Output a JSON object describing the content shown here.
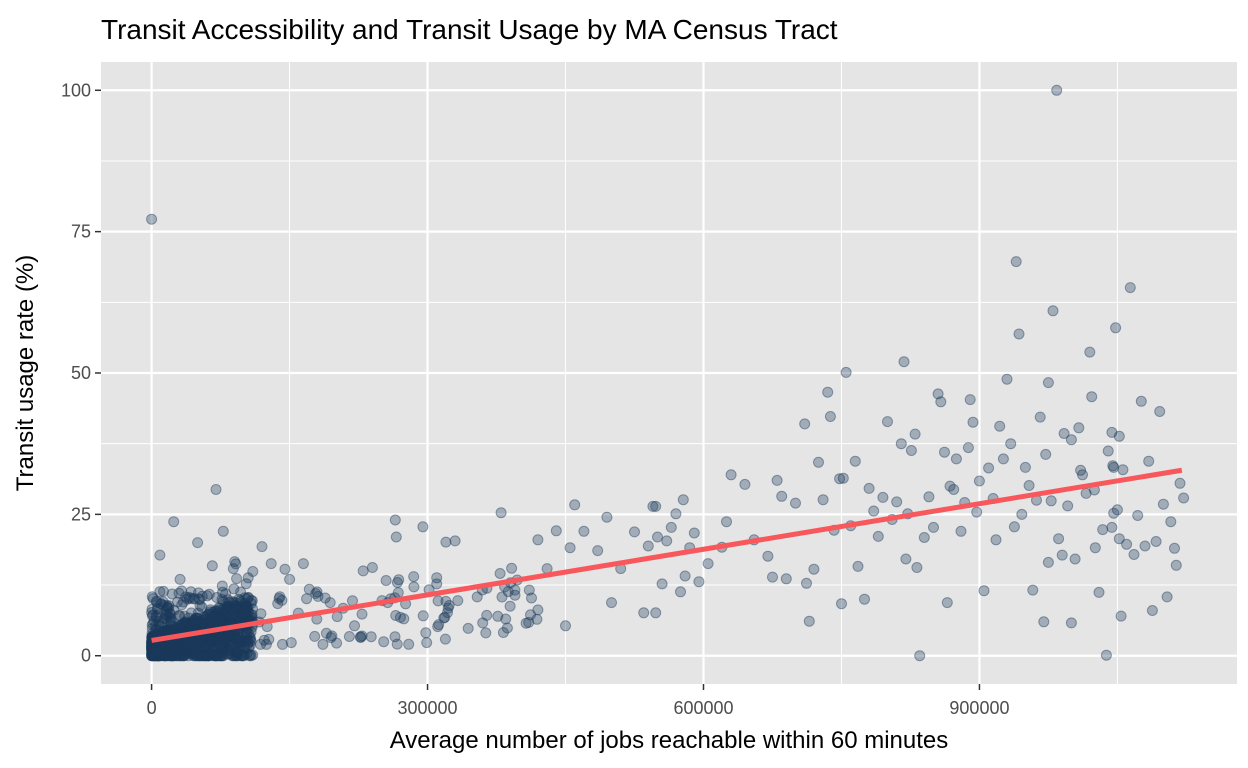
{
  "chart_data": {
    "type": "scatter",
    "title": "Transit Accessibility and Transit Usage by MA Census Tract",
    "xlabel": "Average number of jobs reachable within 60 minutes",
    "ylabel": "Transit usage rate (%)",
    "xlim": [
      -55000,
      1180000
    ],
    "ylim": [
      -5,
      105
    ],
    "x_ticks": [
      0,
      300000,
      600000,
      900000
    ],
    "x_tick_labels": [
      "0",
      "300000",
      "600000",
      "900000"
    ],
    "y_ticks": [
      0,
      25,
      50,
      75,
      100
    ],
    "y_tick_labels": [
      "0",
      "25",
      "50",
      "75",
      "100"
    ],
    "grid": true,
    "legend": "none",
    "colors": {
      "panel": "#e5e5e5",
      "grid": "#ffffff",
      "point": "#1b3a5c",
      "fit_line": "#f8575c"
    },
    "fit_line": {
      "x": [
        0,
        1120000
      ],
      "y": [
        2.7,
        32.8
      ]
    },
    "points": [
      [
        0,
        77.2
      ],
      [
        9000,
        17.8
      ],
      [
        50000,
        20
      ],
      [
        70000,
        29.4
      ],
      [
        78000,
        22
      ],
      [
        24000,
        23.7
      ],
      [
        66000,
        15.9
      ],
      [
        120000,
        19.3
      ],
      [
        130000,
        16.3
      ],
      [
        145000,
        15.3
      ],
      [
        165000,
        16.3
      ],
      [
        110000,
        14.9
      ],
      [
        150000,
        13.5
      ],
      [
        195000,
        3.2
      ],
      [
        215000,
        3.4
      ],
      [
        230000,
        15
      ],
      [
        240000,
        15.6
      ],
      [
        255000,
        13.3
      ],
      [
        265000,
        24
      ],
      [
        266000,
        21
      ],
      [
        285000,
        14
      ],
      [
        295000,
        22.8
      ],
      [
        310000,
        13.8
      ],
      [
        310000,
        12.7
      ],
      [
        320000,
        9.6
      ],
      [
        320000,
        20.1
      ],
      [
        330000,
        20.3
      ],
      [
        360000,
        5.8
      ],
      [
        380000,
        25.3
      ],
      [
        385000,
        6.5
      ],
      [
        395000,
        11.6
      ],
      [
        410000,
        5.9
      ],
      [
        420000,
        8.1
      ],
      [
        420000,
        20.5
      ],
      [
        430000,
        15.4
      ],
      [
        440000,
        22.1
      ],
      [
        450000,
        5.3
      ],
      [
        455000,
        19.1
      ],
      [
        460000,
        26.7
      ],
      [
        470000,
        22
      ],
      [
        485000,
        18.6
      ],
      [
        495000,
        24.5
      ],
      [
        500000,
        9.4
      ],
      [
        510000,
        15.4
      ],
      [
        525000,
        21.9
      ],
      [
        535000,
        7.6
      ],
      [
        540000,
        19.4
      ],
      [
        545000,
        26.4
      ],
      [
        548000,
        26.4
      ],
      [
        548000,
        7.6
      ],
      [
        550000,
        21
      ],
      [
        555000,
        12.7
      ],
      [
        560000,
        20.3
      ],
      [
        565000,
        22.7
      ],
      [
        570000,
        25.1
      ],
      [
        575000,
        11.3
      ],
      [
        578000,
        27.6
      ],
      [
        580000,
        14.1
      ],
      [
        585000,
        19.1
      ],
      [
        590000,
        21.7
      ],
      [
        595000,
        13.1
      ],
      [
        605000,
        16.3
      ],
      [
        620000,
        19.2
      ],
      [
        625000,
        23.7
      ],
      [
        630000,
        32
      ],
      [
        645000,
        30.3
      ],
      [
        655000,
        20.5
      ],
      [
        670000,
        17.6
      ],
      [
        675000,
        13.9
      ],
      [
        680000,
        31
      ],
      [
        685000,
        28.2
      ],
      [
        690000,
        13.6
      ],
      [
        700000,
        27
      ],
      [
        710000,
        41
      ],
      [
        712000,
        12.8
      ],
      [
        715000,
        6.1
      ],
      [
        720000,
        15.3
      ],
      [
        725000,
        34.2
      ],
      [
        730000,
        27.6
      ],
      [
        735000,
        46.6
      ],
      [
        738000,
        42.3
      ],
      [
        742000,
        22.2
      ],
      [
        748000,
        31.3
      ],
      [
        750000,
        9.2
      ],
      [
        752000,
        31.4
      ],
      [
        755000,
        50.1
      ],
      [
        760000,
        23
      ],
      [
        765000,
        34.4
      ],
      [
        768000,
        15.8
      ],
      [
        775000,
        10
      ],
      [
        780000,
        29.6
      ],
      [
        785000,
        25.6
      ],
      [
        790000,
        21.1
      ],
      [
        795000,
        28
      ],
      [
        800000,
        41.4
      ],
      [
        805000,
        24.1
      ],
      [
        810000,
        27.2
      ],
      [
        815000,
        37.5
      ],
      [
        818000,
        52
      ],
      [
        820000,
        17.1
      ],
      [
        822000,
        25.1
      ],
      [
        826000,
        36.3
      ],
      [
        830000,
        39.2
      ],
      [
        832000,
        15.6
      ],
      [
        835000,
        0
      ],
      [
        840000,
        20.9
      ],
      [
        845000,
        28.1
      ],
      [
        850000,
        22.7
      ],
      [
        855000,
        46.3
      ],
      [
        858000,
        44.9
      ],
      [
        862000,
        36
      ],
      [
        865000,
        9.4
      ],
      [
        868000,
        30
      ],
      [
        872000,
        29.4
      ],
      [
        875000,
        34.8
      ],
      [
        880000,
        22
      ],
      [
        884000,
        27.1
      ],
      [
        888000,
        36.8
      ],
      [
        890000,
        45.3
      ],
      [
        893000,
        41.3
      ],
      [
        897000,
        25.4
      ],
      [
        900000,
        30.9
      ],
      [
        905000,
        11.5
      ],
      [
        910000,
        33.2
      ],
      [
        915000,
        27.8
      ],
      [
        918000,
        20.5
      ],
      [
        922000,
        40.6
      ],
      [
        926000,
        34.8
      ],
      [
        930000,
        48.9
      ],
      [
        934000,
        37.5
      ],
      [
        938000,
        22.8
      ],
      [
        940000,
        69.7
      ],
      [
        943000,
        56.9
      ],
      [
        946000,
        25
      ],
      [
        950000,
        33.3
      ],
      [
        954000,
        30.1
      ],
      [
        958000,
        11.6
      ],
      [
        962000,
        27.5
      ],
      [
        966000,
        42.2
      ],
      [
        970000,
        6
      ],
      [
        972000,
        35.6
      ],
      [
        975000,
        48.3
      ],
      [
        978000,
        27.4
      ],
      [
        980000,
        61
      ],
      [
        984000,
        100
      ],
      [
        986000,
        20.7
      ],
      [
        990000,
        17.8
      ],
      [
        992000,
        39.3
      ],
      [
        996000,
        26.5
      ],
      [
        1000000,
        38.2
      ],
      [
        1004000,
        17.1
      ],
      [
        1008000,
        40.3
      ],
      [
        1012000,
        32
      ],
      [
        1016000,
        28.7
      ],
      [
        1020000,
        53.7
      ],
      [
        1022000,
        45.8
      ],
      [
        1026000,
        19.1
      ],
      [
        1030000,
        11.2
      ],
      [
        1034000,
        22.3
      ],
      [
        1038000,
        0.1
      ],
      [
        1040000,
        36.2
      ],
      [
        1044000,
        39.5
      ],
      [
        1046000,
        33.3
      ],
      [
        1048000,
        58
      ],
      [
        1050000,
        25.8
      ],
      [
        1052000,
        38.8
      ],
      [
        1054000,
        7
      ],
      [
        1056000,
        32.9
      ],
      [
        1060000,
        19.7
      ],
      [
        1064000,
        65.1
      ],
      [
        1068000,
        17.9
      ],
      [
        1072000,
        24.8
      ],
      [
        1076000,
        45
      ],
      [
        1080000,
        19.4
      ],
      [
        1084000,
        34.4
      ],
      [
        1088000,
        8
      ],
      [
        1092000,
        20.2
      ],
      [
        1096000,
        43.2
      ],
      [
        1100000,
        26.8
      ],
      [
        1104000,
        10.4
      ],
      [
        1108000,
        23.7
      ],
      [
        1112000,
        19
      ],
      [
        1114000,
        16
      ],
      [
        1118000,
        30.5
      ],
      [
        1122000,
        27.9
      ],
      [
        1044000,
        22.7
      ],
      [
        1046000,
        25.2
      ],
      [
        1000000,
        5.8
      ],
      [
        975000,
        16.5
      ],
      [
        1010000,
        32.8
      ],
      [
        1025000,
        29.3
      ],
      [
        1045000,
        33.6
      ],
      [
        1052000,
        20.7
      ]
    ]
  }
}
